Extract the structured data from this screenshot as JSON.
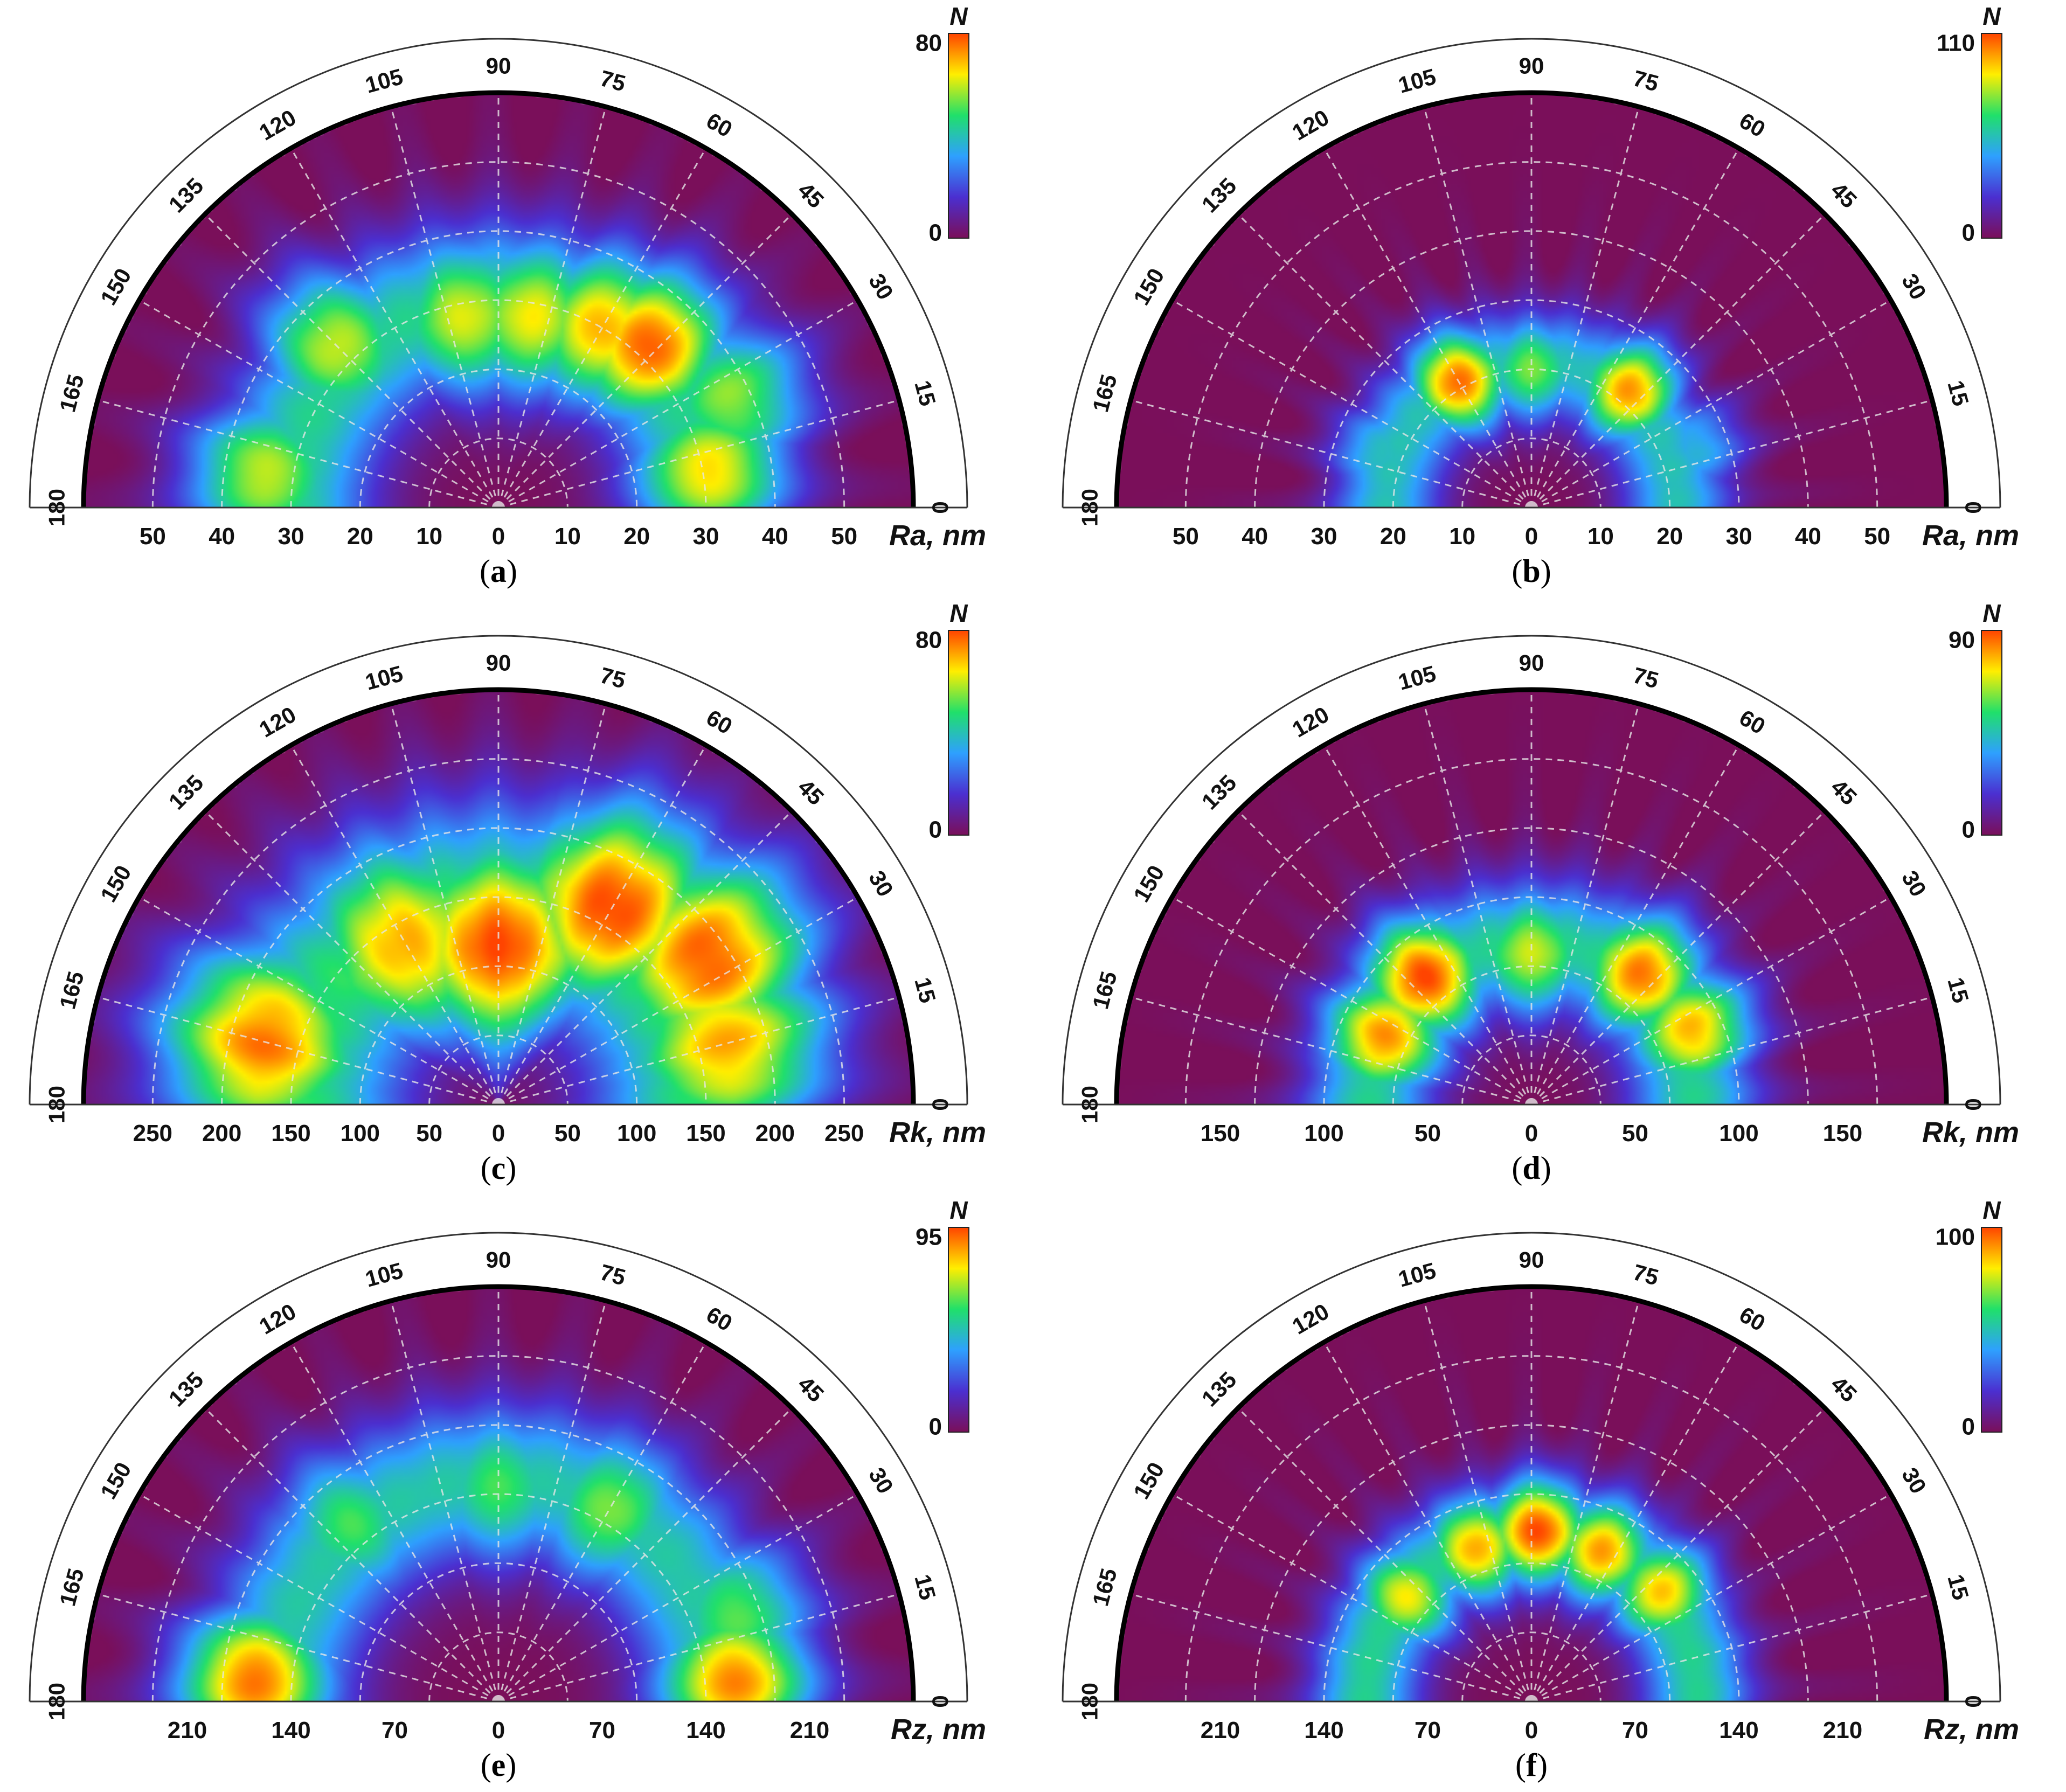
{
  "figure": {
    "panels": [
      {
        "id": "a",
        "caption_open": "(",
        "caption_letter": "a",
        "caption_close": ")",
        "axis_label": "Ra, nm",
        "colorbar": {
          "label": "N",
          "max_label": "80",
          "min_label": "0"
        },
        "chart_data": {
          "type": "heatmap",
          "projection": "polar-semicircle",
          "angle_ticks": [
            0,
            15,
            30,
            45,
            60,
            75,
            90,
            105,
            120,
            135,
            150,
            165,
            180
          ],
          "radial_tick_labels": [
            "50",
            "40",
            "30",
            "20",
            "10",
            "0",
            "10",
            "20",
            "30",
            "40",
            "50"
          ],
          "radial_range": [
            0,
            60
          ],
          "color_range": [
            0,
            80
          ],
          "colormap": [
            "#7a0f5a",
            "#4b2fd0",
            "#2ea0ff",
            "#20e06a",
            "#ffee00",
            "#ff4400"
          ],
          "ring": {
            "radius": 30,
            "width": 12,
            "base_level": 0.55
          },
          "hotspots": [
            {
              "angle": 47,
              "radius": 32,
              "value": 78
            },
            {
              "angle": 60,
              "radius": 30,
              "value": 70
            },
            {
              "angle": 80,
              "radius": 28,
              "value": 64
            },
            {
              "angle": 100,
              "radius": 28,
              "value": 62
            },
            {
              "angle": 135,
              "radius": 33,
              "value": 60
            },
            {
              "angle": 172,
              "radius": 34,
              "value": 60
            },
            {
              "angle": 10,
              "radius": 31,
              "value": 66
            },
            {
              "angle": 25,
              "radius": 37,
              "value": 56
            }
          ]
        }
      },
      {
        "id": "b",
        "caption_open": "(",
        "caption_letter": "b",
        "caption_close": ")",
        "axis_label": "Ra, nm",
        "colorbar": {
          "label": "N",
          "max_label": "110",
          "min_label": "0"
        },
        "chart_data": {
          "type": "heatmap",
          "projection": "polar-semicircle",
          "angle_ticks": [
            0,
            15,
            30,
            45,
            60,
            75,
            90,
            105,
            120,
            135,
            150,
            165,
            180
          ],
          "radial_tick_labels": [
            "50",
            "40",
            "30",
            "20",
            "10",
            "0",
            "10",
            "20",
            "30",
            "40",
            "50"
          ],
          "radial_range": [
            0,
            60
          ],
          "color_range": [
            0,
            110
          ],
          "colormap": [
            "#7a0f5a",
            "#4b2fd0",
            "#2ea0ff",
            "#20e06a",
            "#ffee00",
            "#ff4400"
          ],
          "ring": {
            "radius": 21,
            "width": 8,
            "base_level": 0.5
          },
          "hotspots": [
            {
              "angle": 120,
              "radius": 21,
              "value": 105
            },
            {
              "angle": 50,
              "radius": 22,
              "value": 100
            },
            {
              "angle": 90,
              "radius": 20,
              "value": 75
            },
            {
              "angle": 160,
              "radius": 23,
              "value": 55
            },
            {
              "angle": 20,
              "radius": 25,
              "value": 50
            }
          ]
        }
      },
      {
        "id": "c",
        "caption_open": "(",
        "caption_letter": "c",
        "caption_close": ")",
        "axis_label": "Rk, nm",
        "colorbar": {
          "label": "N",
          "max_label": "80",
          "min_label": "0"
        },
        "chart_data": {
          "type": "heatmap",
          "projection": "polar-semicircle",
          "angle_ticks": [
            0,
            15,
            30,
            45,
            60,
            75,
            90,
            105,
            120,
            135,
            150,
            165,
            180
          ],
          "radial_tick_labels": [
            "250",
            "200",
            "150",
            "100",
            "50",
            "0",
            "50",
            "100",
            "150",
            "200",
            "250"
          ],
          "radial_range": [
            0,
            300
          ],
          "color_range": [
            0,
            80
          ],
          "colormap": [
            "#7a0f5a",
            "#4b2fd0",
            "#2ea0ff",
            "#20e06a",
            "#ffee00",
            "#ff4400"
          ],
          "ring": {
            "radius": 145,
            "width": 80,
            "base_level": 0.6
          },
          "hotspots": [
            {
              "angle": 90,
              "radius": 115,
              "value": 80
            },
            {
              "angle": 60,
              "radius": 165,
              "value": 80
            },
            {
              "angle": 35,
              "radius": 185,
              "value": 78
            },
            {
              "angle": 120,
              "radius": 135,
              "value": 70
            },
            {
              "angle": 165,
              "radius": 175,
              "value": 75
            },
            {
              "angle": 15,
              "radius": 170,
              "value": 70
            }
          ]
        }
      },
      {
        "id": "d",
        "caption_open": "(",
        "caption_letter": "d",
        "caption_close": ")",
        "axis_label": "Rk, nm",
        "colorbar": {
          "label": "N",
          "max_label": "90",
          "min_label": "0"
        },
        "chart_data": {
          "type": "heatmap",
          "projection": "polar-semicircle",
          "angle_ticks": [
            0,
            15,
            30,
            45,
            60,
            75,
            90,
            105,
            120,
            135,
            150,
            165,
            180
          ],
          "radial_tick_labels": [
            "150",
            "100",
            "50",
            "0",
            "50",
            "100",
            "150"
          ],
          "radial_range": [
            0,
            200
          ],
          "color_range": [
            0,
            90
          ],
          "colormap": [
            "#7a0f5a",
            "#4b2fd0",
            "#2ea0ff",
            "#20e06a",
            "#ffee00",
            "#ff4400"
          ],
          "ring": {
            "radius": 78,
            "width": 32,
            "base_level": 0.55
          },
          "hotspots": [
            {
              "angle": 130,
              "radius": 80,
              "value": 90
            },
            {
              "angle": 155,
              "radius": 78,
              "value": 82
            },
            {
              "angle": 50,
              "radius": 82,
              "value": 85
            },
            {
              "angle": 25,
              "radius": 85,
              "value": 78
            },
            {
              "angle": 90,
              "radius": 73,
              "value": 68
            }
          ]
        }
      },
      {
        "id": "e",
        "caption_open": "(",
        "caption_letter": "e",
        "caption_close": ")",
        "axis_label": "Rz, nm",
        "colorbar": {
          "label": "N",
          "max_label": "95",
          "min_label": "0"
        },
        "chart_data": {
          "type": "heatmap",
          "projection": "polar-semicircle",
          "angle_ticks": [
            0,
            15,
            30,
            45,
            60,
            75,
            90,
            105,
            120,
            135,
            150,
            165,
            180
          ],
          "radial_tick_labels": [
            "210",
            "140",
            "70",
            "0",
            "70",
            "140",
            "210"
          ],
          "radial_range": [
            0,
            280
          ],
          "color_range": [
            0,
            95
          ],
          "colormap": [
            "#7a0f5a",
            "#4b2fd0",
            "#2ea0ff",
            "#20e06a",
            "#ffee00",
            "#ff4400"
          ],
          "ring": {
            "radius": 150,
            "width": 55,
            "base_level": 0.52
          },
          "hotspots": [
            {
              "angle": 175,
              "radius": 165,
              "value": 90
            },
            {
              "angle": 5,
              "radius": 160,
              "value": 88
            },
            {
              "angle": 60,
              "radius": 150,
              "value": 65
            },
            {
              "angle": 130,
              "radius": 155,
              "value": 60
            },
            {
              "angle": 90,
              "radius": 145,
              "value": 60
            },
            {
              "angle": 20,
              "radius": 170,
              "value": 62
            }
          ]
        }
      },
      {
        "id": "f",
        "caption_open": "(",
        "caption_letter": "f",
        "caption_close": ")",
        "axis_label": "Rz, nm",
        "colorbar": {
          "label": "N",
          "max_label": "100",
          "min_label": "0"
        },
        "chart_data": {
          "type": "heatmap",
          "projection": "polar-semicircle",
          "angle_ticks": [
            0,
            15,
            30,
            45,
            60,
            75,
            90,
            105,
            120,
            135,
            150,
            165,
            180
          ],
          "radial_tick_labels": [
            "210",
            "140",
            "70",
            "0",
            "70",
            "140",
            "210"
          ],
          "radial_range": [
            0,
            280
          ],
          "color_range": [
            0,
            100
          ],
          "colormap": [
            "#7a0f5a",
            "#4b2fd0",
            "#2ea0ff",
            "#20e06a",
            "#ffee00",
            "#ff4400"
          ],
          "ring": {
            "radius": 112,
            "width": 38,
            "base_level": 0.55
          },
          "hotspots": [
            {
              "angle": 88,
              "radius": 115,
              "value": 100
            },
            {
              "angle": 65,
              "radius": 112,
              "value": 90
            },
            {
              "angle": 110,
              "radius": 110,
              "value": 88
            },
            {
              "angle": 40,
              "radius": 115,
              "value": 85
            },
            {
              "angle": 140,
              "radius": 110,
              "value": 80
            }
          ]
        }
      }
    ]
  }
}
